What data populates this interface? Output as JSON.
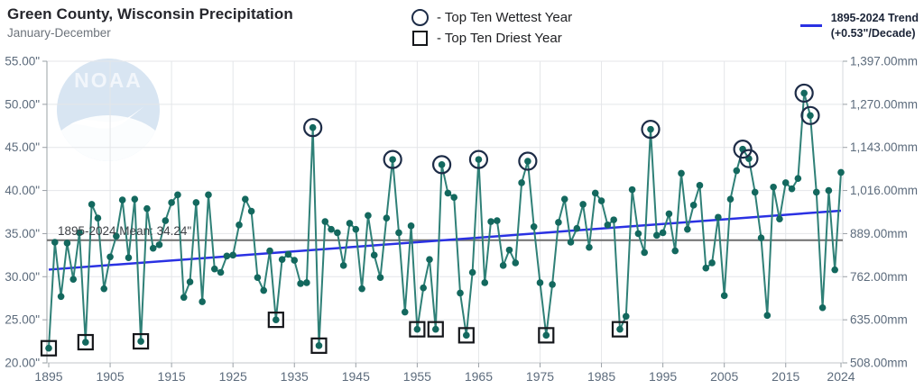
{
  "header": {
    "title": "Green County, Wisconsin Precipitation",
    "subtitle": "January-December"
  },
  "legend": {
    "wettest_label": "- Top Ten Wettest Year",
    "driest_label": "- Top Ten Driest Year"
  },
  "trend_legend": {
    "line1": "1895-2024 Trend",
    "line2": "(+0.53\"/Decade)"
  },
  "watermark": {
    "text": "NOAA"
  },
  "chart_data": {
    "type": "line",
    "title": "Green County, Wisconsin Precipitation",
    "subtitle": "January-December",
    "unit": "inches",
    "ylim": [
      20,
      55
    ],
    "y_ticks_inches": [
      20,
      25,
      30,
      35,
      40,
      45,
      50,
      55
    ],
    "left_axis_tick_labels": [
      "20.00\"",
      "25.00\"",
      "30.00\"",
      "35.00\"",
      "40.00\"",
      "45.00\"",
      "50.00\"",
      "55.00\""
    ],
    "right_axis_tick_labels": [
      "508.00mm",
      "635.00mm",
      "762.00mm",
      "889.00mm",
      "1,016.00mm",
      "1,143.00mm",
      "1,270.00mm",
      "1,397.00mm"
    ],
    "x_tick_years": [
      1895,
      1905,
      1915,
      1925,
      1935,
      1945,
      1955,
      1965,
      1975,
      1985,
      1995,
      2005,
      2015,
      2024
    ],
    "x": [
      1895,
      1896,
      1897,
      1898,
      1899,
      1900,
      1901,
      1902,
      1903,
      1904,
      1905,
      1906,
      1907,
      1908,
      1909,
      1910,
      1911,
      1912,
      1913,
      1914,
      1915,
      1916,
      1917,
      1918,
      1919,
      1920,
      1921,
      1922,
      1923,
      1924,
      1925,
      1926,
      1927,
      1928,
      1929,
      1930,
      1931,
      1932,
      1933,
      1934,
      1935,
      1936,
      1937,
      1938,
      1939,
      1940,
      1941,
      1942,
      1943,
      1944,
      1945,
      1946,
      1947,
      1948,
      1949,
      1950,
      1951,
      1952,
      1953,
      1954,
      1955,
      1956,
      1957,
      1958,
      1959,
      1960,
      1961,
      1962,
      1963,
      1964,
      1965,
      1966,
      1967,
      1968,
      1969,
      1970,
      1971,
      1972,
      1973,
      1974,
      1975,
      1976,
      1977,
      1978,
      1979,
      1980,
      1981,
      1982,
      1983,
      1984,
      1985,
      1986,
      1987,
      1988,
      1989,
      1990,
      1991,
      1992,
      1993,
      1994,
      1995,
      1996,
      1997,
      1998,
      1999,
      2000,
      2001,
      2002,
      2003,
      2004,
      2005,
      2006,
      2007,
      2008,
      2009,
      2010,
      2011,
      2012,
      2013,
      2014,
      2015,
      2016,
      2017,
      2018,
      2019,
      2020,
      2021,
      2022,
      2023,
      2024
    ],
    "values": [
      21.7,
      34.0,
      27.7,
      33.9,
      29.7,
      35.1,
      22.4,
      38.4,
      36.8,
      28.6,
      32.3,
      34.7,
      38.9,
      32.2,
      39.0,
      22.5,
      37.9,
      33.3,
      33.7,
      36.5,
      38.6,
      39.5,
      27.6,
      29.4,
      38.6,
      27.1,
      39.5,
      30.9,
      30.5,
      32.4,
      32.5,
      36.0,
      39.0,
      37.6,
      29.9,
      28.4,
      33.0,
      25.0,
      32.0,
      32.6,
      31.9,
      29.2,
      29.3,
      47.3,
      22.0,
      36.4,
      35.5,
      35.1,
      31.3,
      36.2,
      35.5,
      28.6,
      37.1,
      32.5,
      29.9,
      36.8,
      43.6,
      35.1,
      25.9,
      35.9,
      23.9,
      28.7,
      32.0,
      23.9,
      43.0,
      39.7,
      39.2,
      28.1,
      23.2,
      30.5,
      43.6,
      29.3,
      36.4,
      36.5,
      31.3,
      33.1,
      31.6,
      40.9,
      43.4,
      35.8,
      29.3,
      23.2,
      29.1,
      36.3,
      39.0,
      34.0,
      35.6,
      38.4,
      33.4,
      39.7,
      38.8,
      36.0,
      36.6,
      23.9,
      25.4,
      40.1,
      35.0,
      32.8,
      47.1,
      34.8,
      35.1,
      37.3,
      33.0,
      42.0,
      35.5,
      38.3,
      40.6,
      31.0,
      31.6,
      36.9,
      27.8,
      39.0,
      42.3,
      44.8,
      43.7,
      39.8,
      34.5,
      25.5,
      40.4,
      36.7,
      40.9,
      40.2,
      41.4,
      51.3,
      48.7,
      39.8,
      26.4,
      40.0,
      30.8,
      42.1
    ],
    "top_ten_wettest_years": [
      1938,
      1951,
      1959,
      1965,
      1973,
      1993,
      2008,
      2009,
      2018,
      2019
    ],
    "top_ten_driest_years": [
      1895,
      1901,
      1910,
      1932,
      1939,
      1955,
      1958,
      1963,
      1976,
      1988
    ],
    "mean": {
      "value": 34.24,
      "label": "1895-2024 Mean: 34.24\""
    },
    "trend": {
      "per_decade": 0.53,
      "start_value": 30.82,
      "end_value": 37.66
    },
    "legend_position": "top",
    "grid": "on",
    "colors": {
      "series_line": "#2f8077",
      "series_point": "#13685e",
      "trend_line": "#2a31e3",
      "mean_line": "#6e6e6e",
      "wettest_marker": "#1d2c47",
      "driest_marker": "#15171b",
      "grid_line": "#e4e6e9",
      "axis_line": "#9aa0a6",
      "axis_text": "#5c6b7c",
      "watermark_blue": "#d8e5f2"
    }
  }
}
